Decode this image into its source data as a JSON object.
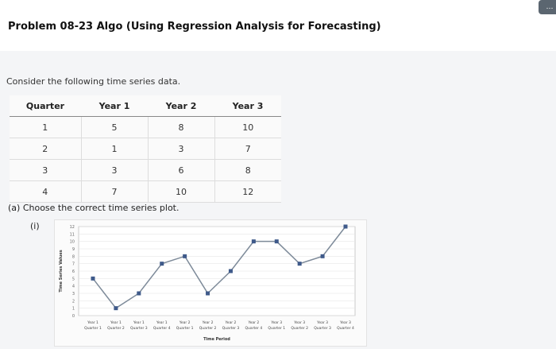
{
  "header": {
    "title": "Problem 08-23 Algo (Using Regression Analysis for Forecasting)"
  },
  "intro": "Consider the following time series data.",
  "table": {
    "headers": [
      "Quarter",
      "Year 1",
      "Year 2",
      "Year 3"
    ],
    "rows": [
      [
        "1",
        "5",
        "8",
        "10"
      ],
      [
        "2",
        "1",
        "3",
        "7"
      ],
      [
        "3",
        "3",
        "6",
        "8"
      ],
      [
        "4",
        "7",
        "10",
        "12"
      ]
    ]
  },
  "part_a": "(a) Choose the correct time series plot.",
  "option_label": "(i)",
  "chart_data": {
    "type": "line",
    "ylabel": "Time Series Values",
    "xlabel": "Time Period",
    "ylim": [
      0,
      12
    ],
    "yticks": [
      "0",
      "1",
      "2",
      "3",
      "4",
      "5",
      "6",
      "7",
      "8",
      "9",
      "10",
      "11",
      "12"
    ],
    "categories": [
      [
        "Year 1",
        "Quarter 1"
      ],
      [
        "Year 1",
        "Quarter 2"
      ],
      [
        "Year 1",
        "Quarter 3"
      ],
      [
        "Year 1",
        "Quarter 4"
      ],
      [
        "Year 2",
        "Quarter 1"
      ],
      [
        "Year 2",
        "Quarter 2"
      ],
      [
        "Year 2",
        "Quarter 3"
      ],
      [
        "Year 2",
        "Quarter 4"
      ],
      [
        "Year 3",
        "Quarter 1"
      ],
      [
        "Year 3",
        "Quarter 2"
      ],
      [
        "Year 3",
        "Quarter 3"
      ],
      [
        "Year 3",
        "Quarter 4"
      ]
    ],
    "values": [
      5,
      1,
      3,
      7,
      8,
      3,
      6,
      10,
      10,
      7,
      8,
      12
    ],
    "grid": true,
    "line_color": "#7d8a99",
    "marker_color": "#3f5a8a"
  }
}
